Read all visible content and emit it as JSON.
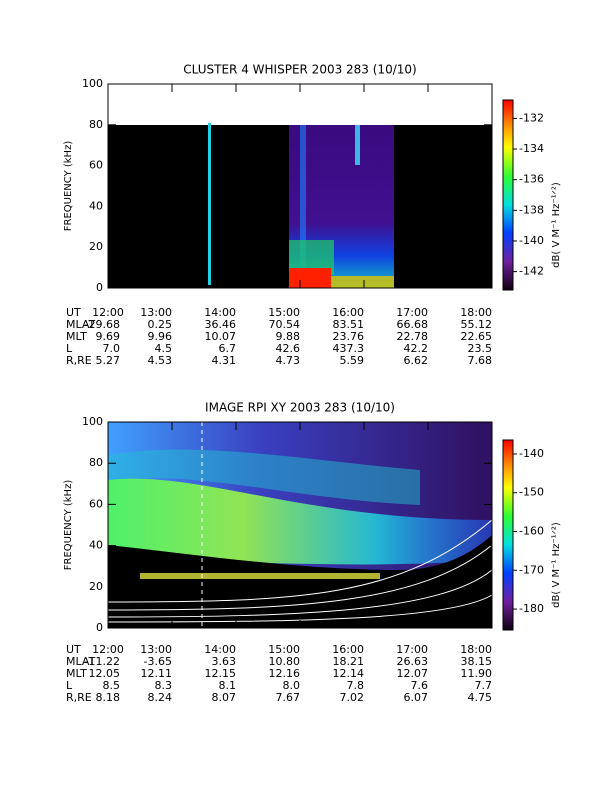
{
  "chart_data": [
    {
      "type": "spectrogram",
      "title": "CLUSTER 4 WHISPER 2003 283 (10/10)",
      "ylabel": "FREQUENCY (kHz)",
      "ylim": [
        0,
        100
      ],
      "yticks": [
        0,
        20,
        40,
        60,
        80,
        100
      ],
      "xlim": [
        12,
        18
      ],
      "xlabel": "UT",
      "xticks": [
        {
          "value": 12,
          "label": "12:00"
        },
        {
          "value": 13,
          "label": "13:00"
        },
        {
          "value": 14,
          "label": "14:00"
        },
        {
          "value": 15,
          "label": "15:00"
        },
        {
          "value": 16,
          "label": "16:00"
        },
        {
          "value": 17,
          "label": "17:00"
        },
        {
          "value": 18,
          "label": "18:00"
        }
      ],
      "colorbar_label": "dB( V M⁻¹ Hz⁻¹ᐟ²)",
      "clim": [
        -143.2,
        -130.8
      ],
      "cticks": [
        -132,
        -134,
        -136,
        -138,
        -140,
        -142
      ],
      "ephemeris": [
        {
          "label": "MLAT",
          "values": [
            "-29.68",
            "0.25",
            "36.46",
            "70.54",
            "83.51",
            "66.68",
            "55.12"
          ]
        },
        {
          "label": "MLT",
          "values": [
            "9.69",
            "9.96",
            "10.07",
            "9.88",
            "23.76",
            "22.78",
            "22.65"
          ]
        },
        {
          "label": "L",
          "values": [
            "7.0",
            "4.5",
            "6.7",
            "42.6",
            "437.3",
            "42.2",
            "23.5"
          ]
        },
        {
          "label": "R,RE",
          "values": [
            "5.27",
            "4.53",
            "4.31",
            "4.73",
            "5.59",
            "6.62",
            "7.68"
          ]
        }
      ]
    },
    {
      "type": "spectrogram",
      "title": "IMAGE RPI XY 2003 283 (10/10)",
      "ylabel": "FREQUENCY (kHz)",
      "ylim": [
        0,
        100
      ],
      "yticks": [
        0,
        20,
        40,
        60,
        80,
        100
      ],
      "xlim": [
        12,
        18
      ],
      "xlabel": "UT",
      "xticks": [
        {
          "value": 12,
          "label": "12:00"
        },
        {
          "value": 13,
          "label": "13:00"
        },
        {
          "value": 14,
          "label": "14:00"
        },
        {
          "value": 15,
          "label": "15:00"
        },
        {
          "value": 16,
          "label": "16:00"
        },
        {
          "value": 17,
          "label": "17:00"
        },
        {
          "value": 18,
          "label": "18:00"
        }
      ],
      "colorbar_label": "dB( V M⁻¹ Hz⁻¹ᐟ²)",
      "clim": [
        -185.4,
        -136.4
      ],
      "cticks": [
        -140,
        -150,
        -160,
        -170,
        -180
      ],
      "ephemeris": [
        {
          "label": "MLAT",
          "values": [
            "-11.22",
            "-3.65",
            "3.63",
            "10.80",
            "18.21",
            "26.63",
            "38.15"
          ]
        },
        {
          "label": "MLT",
          "values": [
            "12.05",
            "12.11",
            "12.15",
            "12.16",
            "12.14",
            "12.07",
            "11.90"
          ]
        },
        {
          "label": "L",
          "values": [
            "8.5",
            "8.3",
            "8.1",
            "8.0",
            "7.8",
            "7.6",
            "7.7"
          ]
        },
        {
          "label": "R,RE",
          "values": [
            "8.18",
            "8.24",
            "8.07",
            "7.67",
            "7.02",
            "6.07",
            "4.75"
          ]
        }
      ]
    }
  ]
}
